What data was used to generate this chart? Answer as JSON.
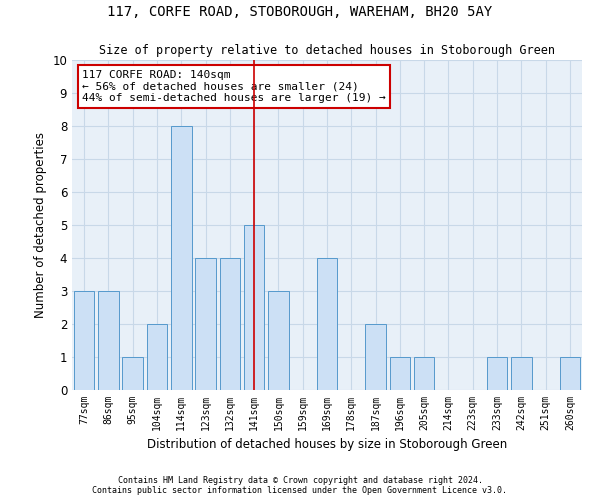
{
  "title1": "117, CORFE ROAD, STOBOROUGH, WAREHAM, BH20 5AY",
  "title2": "Size of property relative to detached houses in Stoborough Green",
  "xlabel": "Distribution of detached houses by size in Stoborough Green",
  "ylabel": "Number of detached properties",
  "categories": [
    "77sqm",
    "86sqm",
    "95sqm",
    "104sqm",
    "114sqm",
    "123sqm",
    "132sqm",
    "141sqm",
    "150sqm",
    "159sqm",
    "169sqm",
    "178sqm",
    "187sqm",
    "196sqm",
    "205sqm",
    "214sqm",
    "223sqm",
    "233sqm",
    "242sqm",
    "251sqm",
    "260sqm"
  ],
  "values": [
    3,
    3,
    1,
    2,
    8,
    4,
    4,
    5,
    3,
    0,
    4,
    0,
    2,
    1,
    1,
    0,
    0,
    1,
    1,
    0,
    1
  ],
  "bar_color": "#cce0f5",
  "bar_edge_color": "#5599cc",
  "highlight_index": 7,
  "highlight_color": "#cc0000",
  "annotation_line1": "117 CORFE ROAD: 140sqm",
  "annotation_line2": "← 56% of detached houses are smaller (24)",
  "annotation_line3": "44% of semi-detached houses are larger (19) →",
  "annotation_box_color": "#ffffff",
  "annotation_box_edge": "#cc0000",
  "ylim": [
    0,
    10
  ],
  "yticks": [
    0,
    1,
    2,
    3,
    4,
    5,
    6,
    7,
    8,
    9,
    10
  ],
  "background_color": "#ffffff",
  "plot_bg_color": "#e8f0f8",
  "grid_color": "#c8d8e8",
  "footer1": "Contains HM Land Registry data © Crown copyright and database right 2024.",
  "footer2": "Contains public sector information licensed under the Open Government Licence v3.0."
}
